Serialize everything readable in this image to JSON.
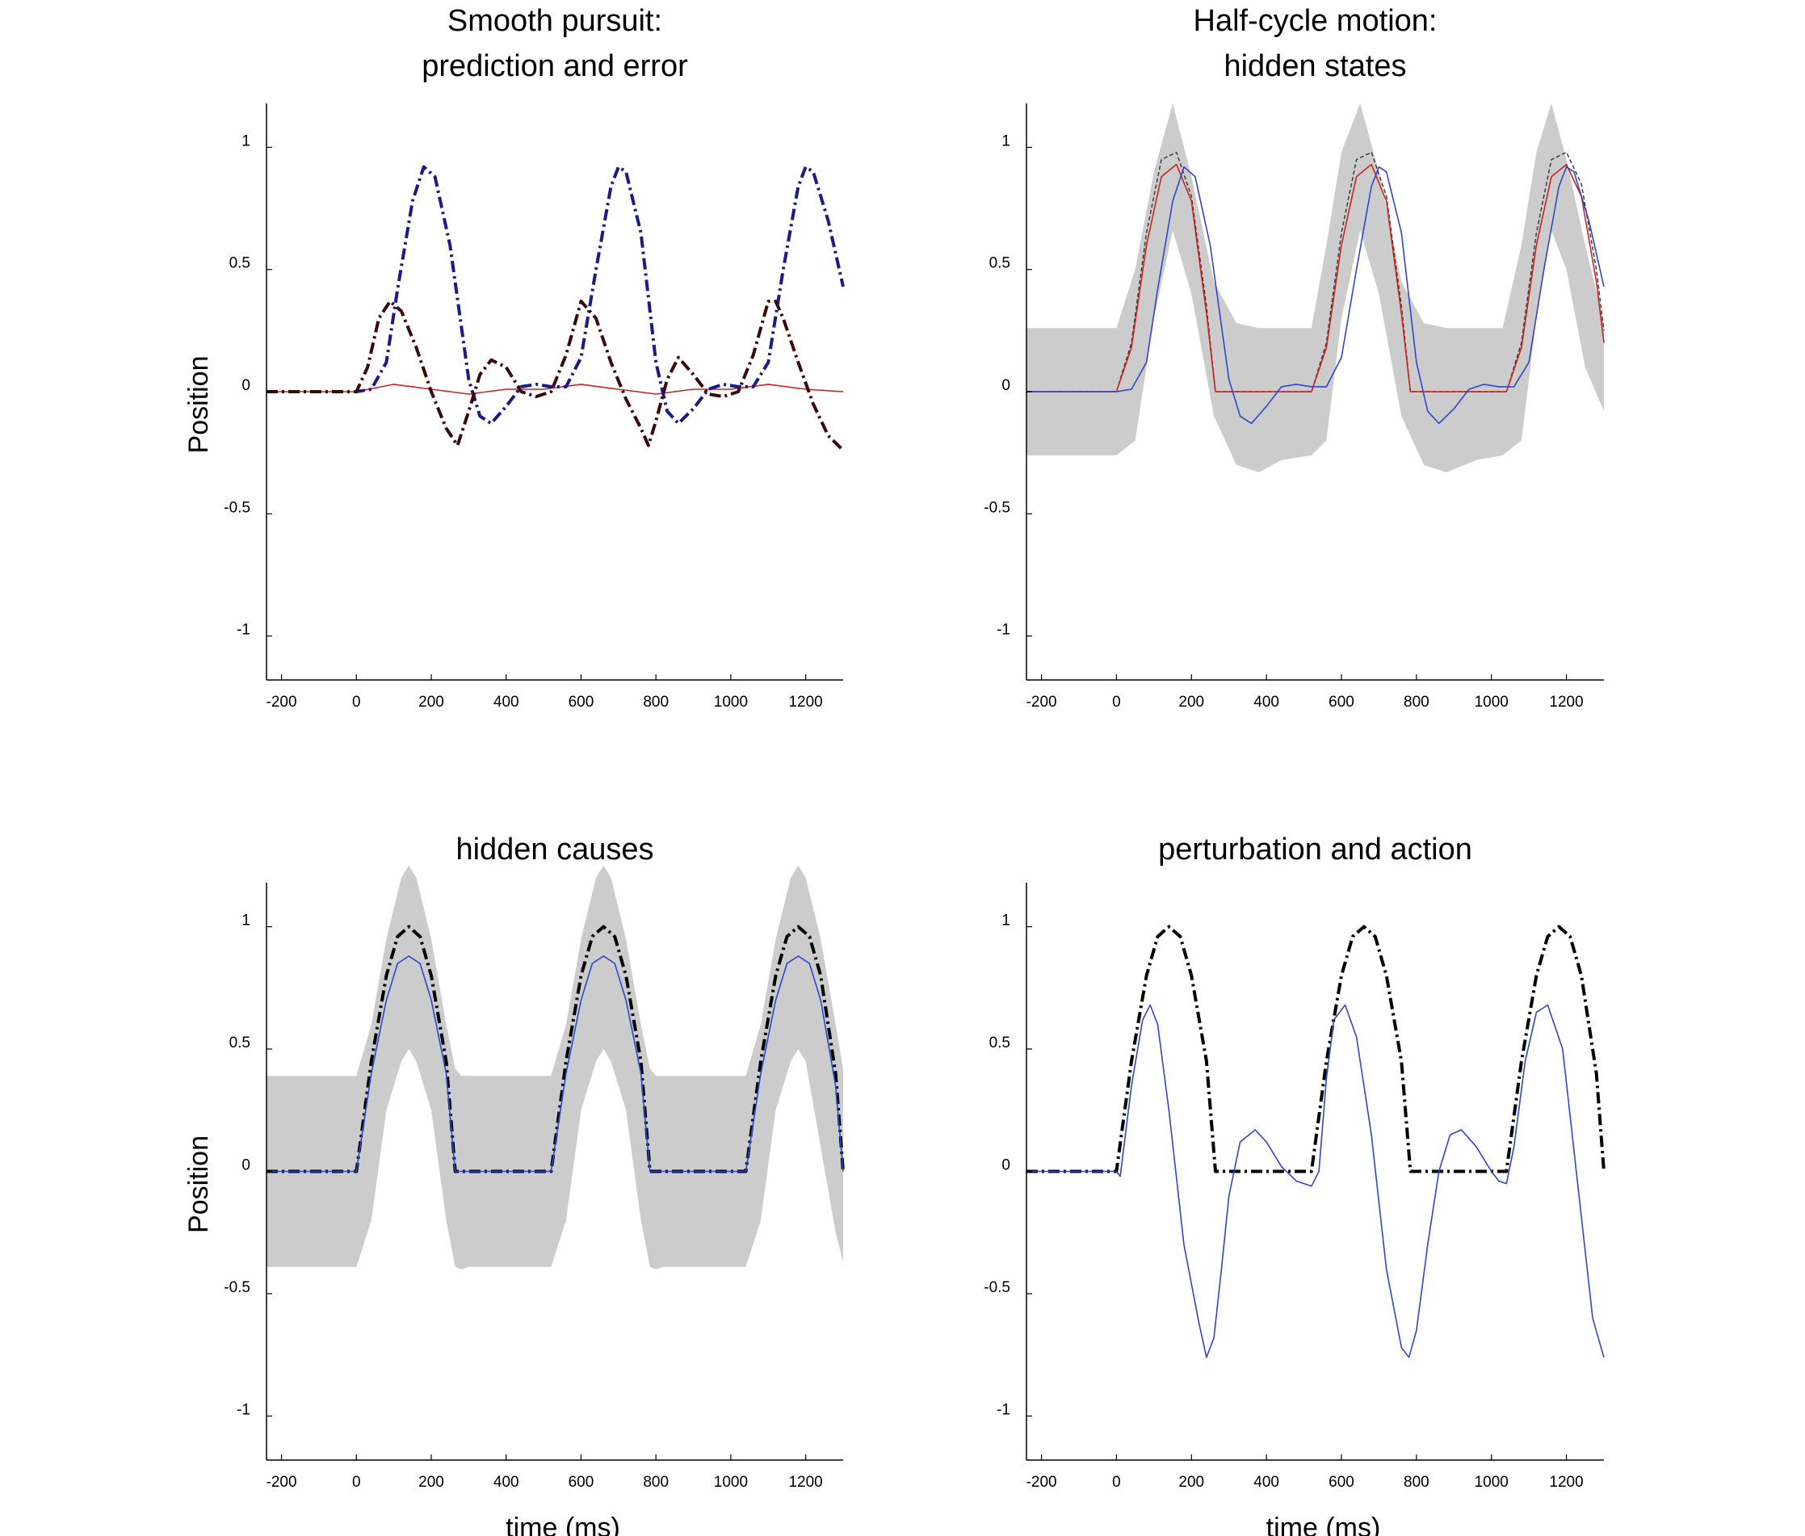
{
  "chart_data": [
    {
      "type": "line",
      "title": [
        "Smooth pursuit:",
        "prediction and error"
      ],
      "xlabel": "",
      "ylabel": "Position",
      "xlim": [
        -240,
        1300
      ],
      "ylim": [
        -1.18,
        1.18
      ],
      "xticks": [
        "-200",
        "0",
        "200",
        "400",
        "600",
        "800",
        "1000",
        "1200"
      ],
      "yticks": [
        "-1",
        "-0.5",
        "0",
        "0.5",
        "1"
      ],
      "band": null,
      "series": [
        {
          "color": "#cc2222",
          "style": "thin",
          "x": [
            -240,
            0,
            100,
            200,
            300,
            400,
            500,
            600,
            700,
            800,
            900,
            1000,
            1100,
            1200,
            1300
          ],
          "y": [
            0,
            0,
            0.03,
            0.01,
            -0.01,
            0.01,
            0.01,
            0.03,
            0.01,
            -0.01,
            0.01,
            0.01,
            0.03,
            0.01,
            0
          ]
        },
        {
          "color": "#1a1a8a",
          "style": "thickdash",
          "x": [
            -240,
            0,
            40,
            80,
            110,
            150,
            180,
            210,
            250,
            300,
            330,
            360,
            400,
            440,
            480,
            520,
            560,
            600,
            640,
            680,
            700,
            720,
            760,
            800,
            830,
            860,
            900,
            940,
            980,
            1020,
            1060,
            1100,
            1140,
            1180,
            1200,
            1220,
            1260,
            1300
          ],
          "y": [
            0,
            0,
            0.01,
            0.12,
            0.42,
            0.78,
            0.92,
            0.88,
            0.6,
            0.05,
            -0.1,
            -0.13,
            -0.06,
            0.02,
            0.03,
            0.02,
            0.02,
            0.14,
            0.5,
            0.84,
            0.92,
            0.9,
            0.65,
            0.12,
            -0.08,
            -0.13,
            -0.07,
            0.01,
            0.03,
            0.02,
            0.02,
            0.12,
            0.5,
            0.84,
            0.92,
            0.9,
            0.7,
            0.43
          ]
        },
        {
          "color": "#3a0a0a",
          "style": "thickdash",
          "x": [
            -240,
            0,
            30,
            60,
            90,
            120,
            160,
            200,
            240,
            270,
            300,
            330,
            360,
            400,
            440,
            480,
            520,
            560,
            600,
            640,
            680,
            720,
            760,
            780,
            800,
            830,
            860,
            900,
            940,
            980,
            1020,
            1060,
            1100,
            1120,
            1140,
            1180,
            1220,
            1260,
            1300
          ],
          "y": [
            0,
            0,
            0.1,
            0.3,
            0.37,
            0.33,
            0.18,
            0.0,
            -0.15,
            -0.22,
            -0.08,
            0.07,
            0.13,
            0.1,
            0.0,
            -0.02,
            0.0,
            0.15,
            0.37,
            0.3,
            0.12,
            -0.03,
            -0.15,
            -0.22,
            -0.12,
            0.05,
            0.14,
            0.07,
            -0.01,
            -0.02,
            0.0,
            0.15,
            0.37,
            0.37,
            0.3,
            0.12,
            -0.05,
            -0.18,
            -0.24
          ]
        }
      ]
    },
    {
      "type": "line",
      "title": [
        "Half-cycle motion:",
        "hidden states"
      ],
      "xlabel": "",
      "ylabel": "",
      "xlim": [
        -240,
        1300
      ],
      "ylim": [
        -1.18,
        1.18
      ],
      "xticks": [
        "-200",
        "0",
        "200",
        "400",
        "600",
        "800",
        "1000",
        "1200"
      ],
      "yticks": [
        "-1",
        "-0.5",
        "0",
        "0.5",
        "1"
      ],
      "band": {
        "x": [
          -240,
          0,
          50,
          100,
          150,
          200,
          260,
          320,
          380,
          440,
          520,
          560,
          600,
          650,
          700,
          760,
          820,
          880,
          960,
          1030,
          1080,
          1120,
          1160,
          1200,
          1250,
          1300
        ],
        "upper": [
          0.26,
          0.26,
          0.5,
          0.9,
          1.18,
          0.88,
          0.45,
          0.28,
          0.26,
          0.26,
          0.26,
          0.6,
          0.98,
          1.18,
          0.9,
          0.45,
          0.28,
          0.26,
          0.26,
          0.26,
          0.6,
          0.98,
          1.18,
          0.95,
          0.6,
          0.28
        ],
        "lower": [
          -0.26,
          -0.26,
          -0.2,
          0.3,
          0.66,
          0.4,
          -0.1,
          -0.3,
          -0.33,
          -0.28,
          -0.26,
          -0.2,
          0.3,
          0.66,
          0.4,
          -0.1,
          -0.3,
          -0.33,
          -0.28,
          -0.26,
          -0.2,
          0.3,
          0.66,
          0.5,
          0.1,
          -0.08
        ]
      },
      "series": [
        {
          "color": "#333333",
          "style": "thindash",
          "x": [
            -240,
            0,
            40,
            80,
            120,
            160,
            200,
            240,
            264,
            520,
            560,
            600,
            640,
            680,
            720,
            760,
            784,
            1040,
            1080,
            1120,
            1160,
            1200,
            1240,
            1280,
            1300
          ],
          "y": [
            0,
            0,
            0.2,
            0.65,
            0.95,
            0.98,
            0.8,
            0.35,
            0,
            0,
            0.2,
            0.65,
            0.95,
            0.98,
            0.8,
            0.35,
            0,
            0,
            0.2,
            0.65,
            0.95,
            0.98,
            0.85,
            0.5,
            0.25
          ]
        },
        {
          "color": "#cc2222",
          "style": "thin",
          "x": [
            -240,
            0,
            40,
            80,
            120,
            160,
            200,
            240,
            264,
            520,
            560,
            600,
            640,
            680,
            720,
            760,
            784,
            1040,
            1080,
            1120,
            1160,
            1200,
            1240,
            1280,
            1300
          ],
          "y": [
            0,
            0,
            0.18,
            0.6,
            0.88,
            0.93,
            0.78,
            0.32,
            0,
            0,
            0.18,
            0.6,
            0.88,
            0.93,
            0.78,
            0.32,
            0,
            0,
            0.18,
            0.6,
            0.88,
            0.93,
            0.8,
            0.45,
            0.2
          ]
        },
        {
          "color": "#3344cc",
          "style": "thin",
          "x": [
            -240,
            0,
            40,
            80,
            110,
            150,
            180,
            210,
            250,
            300,
            330,
            360,
            400,
            440,
            480,
            520,
            560,
            600,
            640,
            680,
            700,
            720,
            760,
            800,
            830,
            860,
            900,
            940,
            980,
            1020,
            1060,
            1100,
            1140,
            1180,
            1200,
            1220,
            1260,
            1300
          ],
          "y": [
            0,
            0,
            0.01,
            0.12,
            0.42,
            0.78,
            0.92,
            0.88,
            0.6,
            0.05,
            -0.1,
            -0.13,
            -0.06,
            0.02,
            0.03,
            0.02,
            0.02,
            0.14,
            0.5,
            0.84,
            0.92,
            0.9,
            0.65,
            0.12,
            -0.08,
            -0.13,
            -0.07,
            0.01,
            0.03,
            0.02,
            0.02,
            0.12,
            0.5,
            0.84,
            0.92,
            0.9,
            0.7,
            0.43
          ]
        }
      ]
    },
    {
      "type": "line",
      "title": [
        "hidden causes"
      ],
      "xlabel": "time (ms)",
      "ylabel": "Position",
      "xlim": [
        -240,
        1300
      ],
      "ylim": [
        -1.18,
        1.18
      ],
      "xticks": [
        "-200",
        "0",
        "200",
        "400",
        "600",
        "800",
        "1000",
        "1200"
      ],
      "yticks": [
        "-1",
        "-0.5",
        "0",
        "0.5",
        "1"
      ],
      "band": {
        "x": [
          -240,
          0,
          40,
          80,
          120,
          140,
          160,
          200,
          240,
          264,
          280,
          300,
          520,
          560,
          600,
          640,
          660,
          680,
          720,
          760,
          784,
          800,
          820,
          1040,
          1080,
          1120,
          1160,
          1180,
          1200,
          1240,
          1280,
          1300
        ],
        "upper": [
          0.39,
          0.39,
          0.6,
          0.95,
          1.2,
          1.25,
          1.2,
          0.95,
          0.6,
          0.42,
          0.39,
          0.39,
          0.39,
          0.6,
          0.95,
          1.2,
          1.25,
          1.2,
          0.95,
          0.6,
          0.42,
          0.39,
          0.39,
          0.39,
          0.6,
          0.95,
          1.2,
          1.25,
          1.2,
          0.95,
          0.6,
          0.42
        ],
        "lower": [
          -0.39,
          -0.39,
          -0.2,
          0.25,
          0.45,
          0.5,
          0.45,
          0.25,
          -0.2,
          -0.39,
          -0.4,
          -0.39,
          -0.39,
          -0.2,
          0.25,
          0.45,
          0.5,
          0.45,
          0.25,
          -0.2,
          -0.39,
          -0.4,
          -0.39,
          -0.39,
          -0.2,
          0.25,
          0.45,
          0.5,
          0.45,
          0.1,
          -0.25,
          -0.37
        ]
      },
      "series": [
        {
          "color": "#000000",
          "style": "thickdash",
          "x": [
            -240,
            0,
            40,
            80,
            110,
            140,
            170,
            200,
            240,
            264,
            520,
            560,
            600,
            630,
            660,
            690,
            720,
            760,
            784,
            1040,
            1080,
            1120,
            1150,
            1180,
            1210,
            1240,
            1280,
            1300
          ],
          "y": [
            0,
            0,
            0.45,
            0.8,
            0.96,
            1.0,
            0.96,
            0.8,
            0.45,
            0,
            0,
            0.45,
            0.8,
            0.96,
            1.0,
            0.96,
            0.8,
            0.45,
            0,
            0,
            0.45,
            0.8,
            0.96,
            1.0,
            0.96,
            0.8,
            0.4,
            0
          ]
        },
        {
          "color": "#3344cc",
          "style": "thin",
          "x": [
            -240,
            0,
            40,
            80,
            110,
            140,
            170,
            200,
            240,
            264,
            520,
            560,
            600,
            630,
            660,
            690,
            720,
            760,
            784,
            1040,
            1080,
            1120,
            1150,
            1180,
            1210,
            1240,
            1280,
            1300
          ],
          "y": [
            0,
            0,
            0.4,
            0.7,
            0.85,
            0.88,
            0.85,
            0.7,
            0.4,
            0,
            0,
            0.4,
            0.7,
            0.85,
            0.88,
            0.85,
            0.7,
            0.4,
            0,
            0,
            0.4,
            0.7,
            0.85,
            0.88,
            0.85,
            0.7,
            0.35,
            0
          ]
        }
      ]
    },
    {
      "type": "line",
      "title": [
        "perturbation and action"
      ],
      "xlabel": "time (ms)",
      "ylabel": "",
      "xlim": [
        -240,
        1300
      ],
      "ylim": [
        -1.18,
        1.18
      ],
      "xticks": [
        "-200",
        "0",
        "200",
        "400",
        "600",
        "800",
        "1000",
        "1200"
      ],
      "yticks": [
        "-1",
        "-0.5",
        "0",
        "0.5",
        "1"
      ],
      "band": null,
      "series": [
        {
          "color": "#000000",
          "style": "thickdash",
          "x": [
            -240,
            0,
            40,
            80,
            110,
            140,
            170,
            200,
            240,
            264,
            520,
            560,
            600,
            630,
            660,
            690,
            720,
            760,
            784,
            1040,
            1080,
            1120,
            1150,
            1180,
            1210,
            1240,
            1280,
            1300
          ],
          "y": [
            0,
            0,
            0.45,
            0.8,
            0.96,
            1.0,
            0.96,
            0.8,
            0.45,
            0,
            0,
            0.45,
            0.8,
            0.96,
            1.0,
            0.96,
            0.8,
            0.45,
            0,
            0,
            0.45,
            0.8,
            0.96,
            1.0,
            0.96,
            0.8,
            0.4,
            0
          ]
        },
        {
          "color": "#3344cc",
          "style": "thin",
          "x": [
            -240,
            0,
            10,
            40,
            70,
            90,
            110,
            140,
            180,
            220,
            240,
            260,
            280,
            300,
            330,
            370,
            400,
            440,
            480,
            500,
            520,
            540,
            560,
            580,
            610,
            640,
            680,
            720,
            760,
            780,
            800,
            830,
            860,
            890,
            920,
            960,
            1000,
            1020,
            1040,
            1060,
            1090,
            1120,
            1150,
            1190,
            1230,
            1270,
            1300
          ],
          "y": [
            0,
            0,
            -0.02,
            0.35,
            0.62,
            0.68,
            0.6,
            0.25,
            -0.3,
            -0.62,
            -0.76,
            -0.68,
            -0.4,
            -0.1,
            0.12,
            0.17,
            0.12,
            0.02,
            -0.04,
            -0.05,
            -0.06,
            0.0,
            0.38,
            0.62,
            0.68,
            0.55,
            0.15,
            -0.4,
            -0.72,
            -0.76,
            -0.65,
            -0.3,
            0.0,
            0.15,
            0.17,
            0.1,
            0.0,
            -0.04,
            -0.05,
            0.1,
            0.45,
            0.65,
            0.68,
            0.5,
            -0.05,
            -0.6,
            -0.76
          ]
        }
      ]
    }
  ]
}
